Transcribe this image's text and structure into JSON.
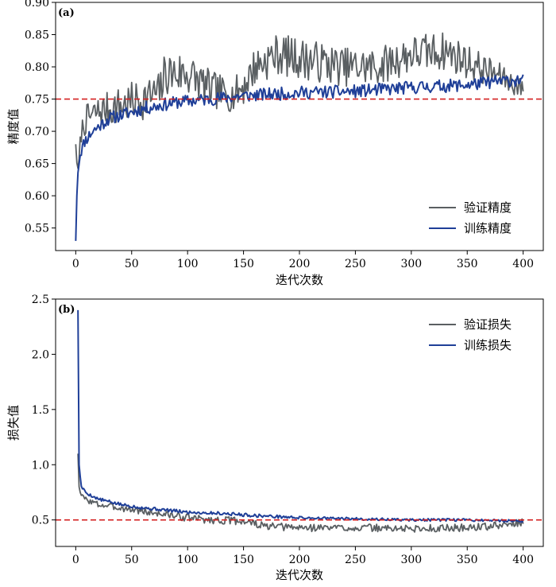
{
  "chart_data": [
    {
      "type": "line",
      "panel_label": "(a)",
      "xlabel": "迭代次数",
      "ylabel": "精度值",
      "xlim": [
        -18,
        418
      ],
      "ylim": [
        0.515,
        0.9
      ],
      "xticks": [
        0,
        50,
        100,
        150,
        200,
        250,
        300,
        350,
        400
      ],
      "yticks": [
        0.55,
        0.6,
        0.65,
        0.7,
        0.75,
        0.8,
        0.85,
        0.9
      ],
      "ytick_labels": [
        "0.55",
        "0.60",
        "0.65",
        "0.70",
        "0.75",
        "0.80",
        "0.85",
        "0.90"
      ],
      "reference_line": 0.75,
      "legend_position": "lower-right",
      "grid": false,
      "series": [
        {
          "name": "验证精度",
          "color": "#5a5f62",
          "anchors": [
            [
              0,
              0.68
            ],
            [
              2,
              0.63
            ],
            [
              5,
              0.7
            ],
            [
              10,
              0.72
            ],
            [
              20,
              0.73
            ],
            [
              40,
              0.74
            ],
            [
              60,
              0.75
            ],
            [
              75,
              0.76
            ],
            [
              80,
              0.79
            ],
            [
              100,
              0.79
            ],
            [
              120,
              0.765
            ],
            [
              140,
              0.755
            ],
            [
              150,
              0.77
            ],
            [
              160,
              0.8
            ],
            [
              180,
              0.82
            ],
            [
              210,
              0.81
            ],
            [
              240,
              0.8
            ],
            [
              270,
              0.8
            ],
            [
              300,
              0.82
            ],
            [
              330,
              0.825
            ],
            [
              360,
              0.8
            ],
            [
              380,
              0.785
            ],
            [
              400,
              0.765
            ]
          ],
          "noise": [
            0.0,
            0.015,
            0.018,
            0.022,
            0.025,
            0.03,
            0.032,
            0.032,
            0.035,
            0.035,
            0.03,
            0.025,
            0.03,
            0.03,
            0.032,
            0.032,
            0.03,
            0.03,
            0.03,
            0.03,
            0.025,
            0.02,
            0.015
          ],
          "seed": 7
        },
        {
          "name": "训练精度",
          "color": "#1f3f98",
          "anchors": [
            [
              0,
              0.53
            ],
            [
              1,
              0.6
            ],
            [
              2,
              0.64
            ],
            [
              4,
              0.665
            ],
            [
              8,
              0.685
            ],
            [
              15,
              0.7
            ],
            [
              30,
              0.72
            ],
            [
              60,
              0.735
            ],
            [
              90,
              0.745
            ],
            [
              120,
              0.75
            ],
            [
              150,
              0.755
            ],
            [
              200,
              0.76
            ],
            [
              250,
              0.762
            ],
            [
              300,
              0.768
            ],
            [
              350,
              0.772
            ],
            [
              380,
              0.778
            ],
            [
              400,
              0.78
            ]
          ],
          "noise": [
            0.0,
            0.005,
            0.008,
            0.008,
            0.01,
            0.01,
            0.01,
            0.01,
            0.01,
            0.01,
            0.01,
            0.01,
            0.01,
            0.01,
            0.01,
            0.01,
            0.01
          ],
          "seed": 11
        }
      ]
    },
    {
      "type": "line",
      "panel_label": "(b)",
      "xlabel": "迭代次数",
      "ylabel": "损失值",
      "xlim": [
        -18,
        418
      ],
      "ylim": [
        0.26,
        2.5
      ],
      "xticks": [
        0,
        50,
        100,
        150,
        200,
        250,
        300,
        350,
        400
      ],
      "yticks": [
        0.5,
        1.0,
        1.5,
        2.0,
        2.5
      ],
      "ytick_labels": [
        "0.5",
        "1.0",
        "1.5",
        "2.0",
        "2.5"
      ],
      "reference_line": 0.5,
      "legend_position": "upper-right",
      "grid": false,
      "series": [
        {
          "name": "验证损失",
          "color": "#5a5f62",
          "anchors": [
            [
              2,
              1.1
            ],
            [
              3,
              0.8
            ],
            [
              5,
              0.72
            ],
            [
              10,
              0.68
            ],
            [
              20,
              0.64
            ],
            [
              40,
              0.61
            ],
            [
              60,
              0.58
            ],
            [
              80,
              0.55
            ],
            [
              100,
              0.52
            ],
            [
              120,
              0.5
            ],
            [
              150,
              0.49
            ],
            [
              170,
              0.44
            ],
            [
              200,
              0.43
            ],
            [
              250,
              0.43
            ],
            [
              300,
              0.42
            ],
            [
              350,
              0.43
            ],
            [
              380,
              0.45
            ],
            [
              400,
              0.48
            ]
          ],
          "noise": [
            0.0,
            0.02,
            0.02,
            0.025,
            0.03,
            0.03,
            0.035,
            0.035,
            0.035,
            0.035,
            0.035,
            0.035,
            0.035,
            0.035,
            0.035,
            0.035,
            0.035,
            0.03
          ],
          "seed": 3
        },
        {
          "name": "训练损失",
          "color": "#1f3f98",
          "anchors": [
            [
              2,
              2.4
            ],
            [
              3,
              1.0
            ],
            [
              5,
              0.8
            ],
            [
              10,
              0.74
            ],
            [
              20,
              0.69
            ],
            [
              40,
              0.64
            ],
            [
              60,
              0.61
            ],
            [
              80,
              0.59
            ],
            [
              100,
              0.57
            ],
            [
              130,
              0.56
            ],
            [
              160,
              0.54
            ],
            [
              200,
              0.52
            ],
            [
              250,
              0.51
            ],
            [
              300,
              0.5
            ],
            [
              350,
              0.5
            ],
            [
              400,
              0.49
            ]
          ],
          "noise": [
            0.0,
            0.01,
            0.012,
            0.012,
            0.014,
            0.015,
            0.015,
            0.015,
            0.015,
            0.015,
            0.015,
            0.012,
            0.012,
            0.012,
            0.012,
            0.012
          ],
          "seed": 5
        }
      ]
    }
  ],
  "colors": {
    "reference_line": "#d42020"
  }
}
